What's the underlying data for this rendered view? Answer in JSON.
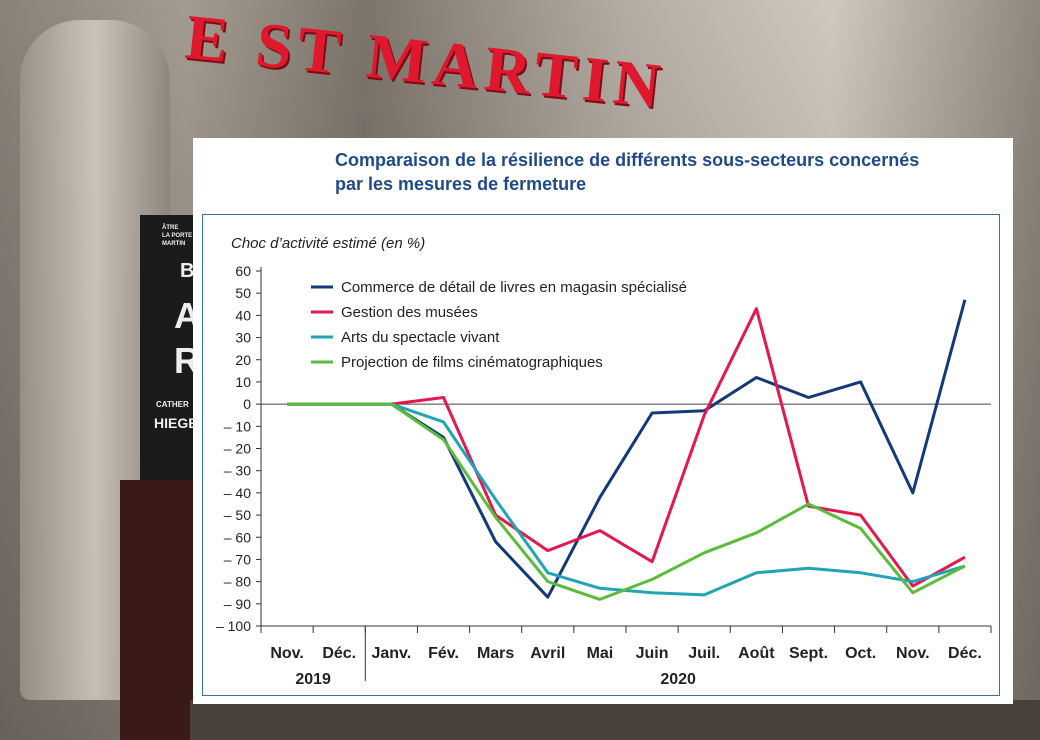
{
  "background": {
    "sign_text": "E ST MARTIN",
    "poster_lines": [
      "ÂTRE",
      "LA PORTE",
      "MARTIN",
      "B",
      "A",
      "R",
      "CATHER",
      "HIEGE"
    ]
  },
  "chart_data": {
    "type": "line",
    "title": "Comparaison de la résilience de différents sous-secteurs concernés par les mesures de fermeture",
    "title_lines": [
      "Comparaison de la résilience de différents sous-secteurs concernés",
      "par les mesures de fermeture"
    ],
    "ylabel": "Choc d’activité estimé (en %)",
    "xlabel": "",
    "ylim": [
      -100,
      60
    ],
    "yticks": [
      60,
      50,
      40,
      30,
      20,
      10,
      0,
      -10,
      -20,
      -30,
      -40,
      -50,
      -60,
      -70,
      -80,
      -90,
      -100
    ],
    "ytick_labels": [
      "60",
      "50",
      "40",
      "30",
      "20",
      "10",
      "0",
      "– 10",
      "– 20",
      "– 30",
      "– 40",
      "– 50",
      "– 60",
      "– 70",
      "– 80",
      "– 90",
      "– 100"
    ],
    "categories": [
      "Nov.",
      "Déc.",
      "Janv.",
      "Fév.",
      "Mars",
      "Avril",
      "Mai",
      "Juin",
      "Juil.",
      "Août",
      "Sept.",
      "Oct.",
      "Nov.",
      "Déc."
    ],
    "year_labels": [
      {
        "label": "2019",
        "span": [
          0,
          1
        ]
      },
      {
        "label": "2020",
        "span": [
          2,
          13
        ]
      }
    ],
    "grid": false,
    "legend_position": "top-left",
    "series": [
      {
        "name": "Commerce de détail de livres en magasin spécialisé",
        "color": "#12397a",
        "values": [
          0,
          0,
          0,
          -15,
          -62,
          -87,
          -42,
          -4,
          -3,
          12,
          3,
          10,
          -40,
          47
        ]
      },
      {
        "name": "Gestion des musées",
        "color": "#e4174f",
        "values": [
          0,
          0,
          0,
          3,
          -50,
          -66,
          -57,
          -71,
          -5,
          43,
          -46,
          -50,
          -82,
          -69
        ]
      },
      {
        "name": "Arts du spectacle vivant",
        "color": "#1fa5b5",
        "values": [
          0,
          0,
          0,
          -8,
          -43,
          -76,
          -83,
          -85,
          -86,
          -76,
          -74,
          -76,
          -80,
          -73
        ]
      },
      {
        "name": "Projection de films cinématographiques",
        "color": "#5bbb3a",
        "values": [
          0,
          0,
          0,
          -16,
          -51,
          -80,
          -88,
          -79,
          -67,
          -58,
          -45,
          -56,
          -85,
          -73
        ]
      }
    ]
  }
}
